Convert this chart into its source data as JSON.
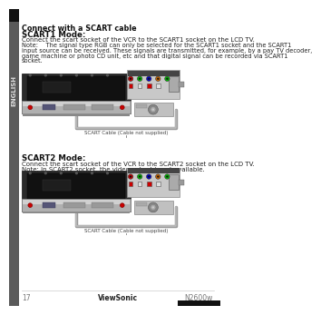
{
  "background_color": "#f0f0f0",
  "page_bg": "#ffffff",
  "sidebar_color": "#5a5a5a",
  "sidebar_text": "ENGLISH",
  "sidebar_text_color": "#dddddd",
  "title_text": "Connect with a SCART cable",
  "s1_heading": "SCART1 Mode:",
  "s1_line1": "Connect the scart socket of the VCR to the SCART1 socket on the LCD TV.",
  "s1_note": "Note:    The signal type RGB can only be selected for the SCART1 socket and the SCART1\ninput source can be received. These signals are transmitted, for example, by a pay TV decoder,\ngame machine or photo CD unit, etc and that digital signal can be recorded via SCART1\nsocket.",
  "s2_heading": "SCART2 Mode:",
  "s2_line1": "Connect the scart socket of the VCR to the SCART2 socket on the LCD TV.",
  "s2_line2": "Note: In SCART2 socket, the video output is not available.",
  "scart_label": "SCART Cable (Cable not supplied)",
  "footer_page": "17",
  "footer_brand": "ViewSonic",
  "footer_model": "N2600w"
}
